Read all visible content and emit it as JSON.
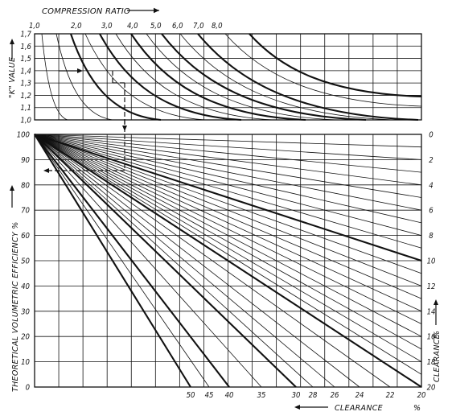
{
  "chart_data": [
    {
      "type": "line",
      "title": "COMPRESSION RATIO",
      "ylabel": "\"K\" VALUE",
      "compression_ratio_labels": [
        "1,0",
        "2,0",
        "3,0",
        "4,0",
        "5,0",
        "6,0",
        "7,0",
        "8,0"
      ],
      "ylim": [
        1.0,
        1.7
      ],
      "y_ticks": [
        "1,0",
        "1,1",
        "1,2",
        "1,3",
        "1,4",
        "1,5",
        "1,6",
        "1,7"
      ],
      "series": [
        {
          "name": "1,0",
          "values": [
            1.7,
            1.0
          ]
        },
        {
          "name": "1,5",
          "values": [
            1.7,
            1.0
          ]
        },
        {
          "name": "2,0",
          "values": [
            1.7,
            1.0
          ]
        },
        {
          "name": "2,5",
          "values": [
            1.7,
            1.0
          ]
        },
        {
          "name": "3,0",
          "values": [
            1.7,
            1.0
          ]
        },
        {
          "name": "3,5",
          "values": [
            1.7,
            1.0
          ]
        },
        {
          "name": "4,0",
          "values": [
            1.7,
            1.0
          ]
        },
        {
          "name": "4,5",
          "values": [
            1.7,
            1.0
          ]
        },
        {
          "name": "5,0",
          "values": [
            1.7,
            1.0
          ]
        },
        {
          "name": "5,5",
          "values": [
            1.7,
            1.0
          ]
        },
        {
          "name": "6,0",
          "values": [
            1.7,
            1.0
          ]
        },
        {
          "name": "7,0",
          "values": [
            1.7,
            1.0
          ]
        },
        {
          "name": "8,0",
          "values": [
            1.7,
            1.0
          ]
        }
      ]
    },
    {
      "type": "line",
      "ylabel": "THEORETICAL VOLUMETRIC EFFICIENCY %",
      "ylim": [
        0,
        100
      ],
      "y_ticks": [
        "0",
        "10",
        "20",
        "30",
        "40",
        "50",
        "60",
        "70",
        "80",
        "90",
        "100"
      ],
      "clearance_title": "CLEARANCE",
      "clearance_unit": "%",
      "right_clearance_ticks": [
        "0",
        "2",
        "4",
        "6",
        "8",
        "10",
        "12",
        "14",
        "16",
        "18",
        "20"
      ],
      "bottom_clearance_ticks": [
        "50",
        "45",
        "40",
        "35",
        "30",
        "28",
        "26",
        "24",
        "22",
        "20"
      ],
      "clearance_lines_percent": [
        0,
        1,
        2,
        3,
        4,
        5,
        6,
        7,
        8,
        9,
        10,
        11,
        12,
        13,
        14,
        15,
        16,
        17,
        18,
        19,
        20,
        22,
        24,
        26,
        28,
        30,
        35,
        40,
        45,
        50
      ],
      "bold_clearance_lines_percent": [
        10,
        20,
        30,
        40,
        50
      ]
    }
  ]
}
